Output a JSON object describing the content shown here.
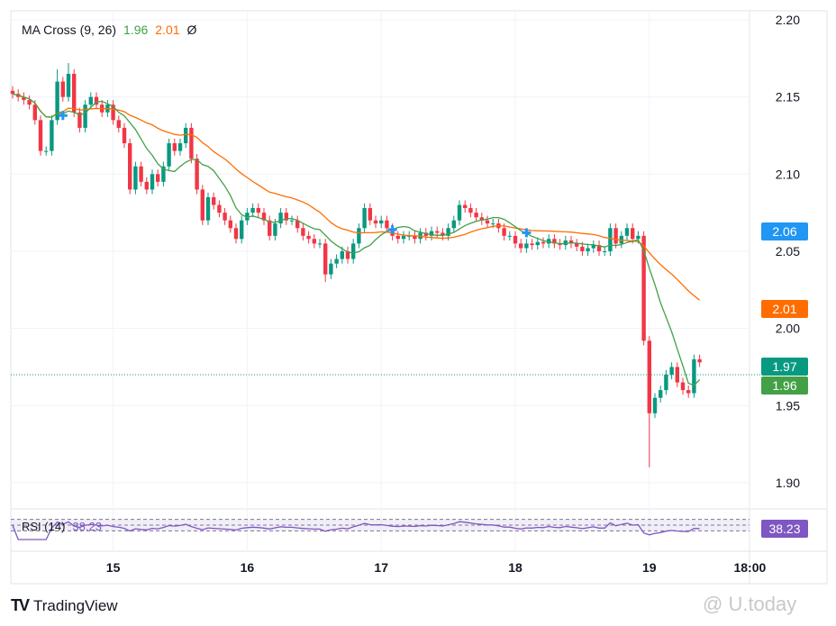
{
  "chart_data": {
    "type": "candlestick",
    "indicator": {
      "name": "MA Cross (9, 26)",
      "fast_value": "1.96",
      "slow_value": "2.01",
      "extra": "Ø"
    },
    "rsi": {
      "name": "RSI (14)",
      "value": "38.23",
      "bands": [
        70,
        50,
        30
      ]
    },
    "interval": "1h",
    "start": "14 06:00",
    "closes": [
      2.152,
      2.15,
      2.148,
      2.145,
      2.135,
      2.115,
      2.115,
      2.135,
      2.16,
      2.15,
      2.165,
      2.14,
      2.13,
      2.145,
      2.15,
      2.145,
      2.14,
      2.145,
      2.135,
      2.13,
      2.12,
      2.09,
      2.105,
      2.095,
      2.09,
      2.1,
      2.095,
      2.105,
      2.12,
      2.115,
      2.12,
      2.13,
      2.11,
      2.09,
      2.07,
      2.085,
      2.08,
      2.075,
      2.07,
      2.065,
      2.058,
      2.07,
      2.075,
      2.078,
      2.075,
      2.07,
      2.06,
      2.068,
      2.075,
      2.07,
      2.07,
      2.065,
      2.06,
      2.058,
      2.055,
      2.055,
      2.035,
      2.042,
      2.045,
      2.05,
      2.045,
      2.055,
      2.065,
      2.078,
      2.07,
      2.068,
      2.07,
      2.065,
      2.06,
      2.058,
      2.06,
      2.06,
      2.058,
      2.062,
      2.06,
      2.063,
      2.062,
      2.06,
      2.065,
      2.07,
      2.08,
      2.078,
      2.075,
      2.072,
      2.07,
      2.068,
      2.068,
      2.065,
      2.06,
      2.06,
      2.055,
      2.052,
      2.055,
      2.054,
      2.056,
      2.055,
      2.058,
      2.055,
      2.054,
      2.057,
      2.055,
      2.053,
      2.05,
      2.052,
      2.054,
      2.05,
      2.05,
      2.065,
      2.055,
      2.06,
      2.065,
      2.058,
      2.06,
      1.992,
      1.945,
      1.955,
      1.96,
      1.97,
      1.975,
      1.965,
      1.96,
      1.958,
      1.98,
      1.978
    ],
    "high_overrides": {
      "10": 2.172,
      "8": 2.168
    },
    "low_overrides": {
      "114": 1.91,
      "56": 2.03
    },
    "cross_markers": [
      {
        "index": 9,
        "price": 2.138
      },
      {
        "index": 68,
        "price": 2.064
      },
      {
        "index": 92,
        "price": 2.062
      }
    ],
    "y_ticks": [
      "2.20",
      "2.15",
      "2.10",
      "2.05",
      "2.00",
      "1.95",
      "1.90"
    ],
    "ylim": [
      1.885,
      2.205
    ],
    "x_ticks": [
      {
        "label": "15",
        "index": 18
      },
      {
        "label": "16",
        "index": 42
      },
      {
        "label": "17",
        "index": 66
      },
      {
        "label": "18",
        "index": 90
      },
      {
        "label": "19",
        "index": 114
      },
      {
        "label": "18:00",
        "index": 132
      }
    ],
    "price_labels": [
      {
        "text": "2.06",
        "price": 2.06,
        "color": "#2196f3"
      },
      {
        "text": "2.01",
        "price": 2.01,
        "color": "#ff6d00"
      },
      {
        "text": "1.97",
        "price": 1.97,
        "color": "#089981"
      },
      {
        "text": "1.96",
        "price": 1.96,
        "color": "#43a047"
      }
    ],
    "rsi_label": {
      "text": "38.23",
      "color": "#7e57c2"
    },
    "colors": {
      "up": "#089981",
      "down": "#f23645",
      "ma_fast": "#43a047",
      "ma_slow": "#ff6d00",
      "rsi": "#7e57c2",
      "marker": "#2196f3"
    }
  },
  "footer": {
    "brand": "TradingView",
    "watermark": "@ U.today"
  }
}
